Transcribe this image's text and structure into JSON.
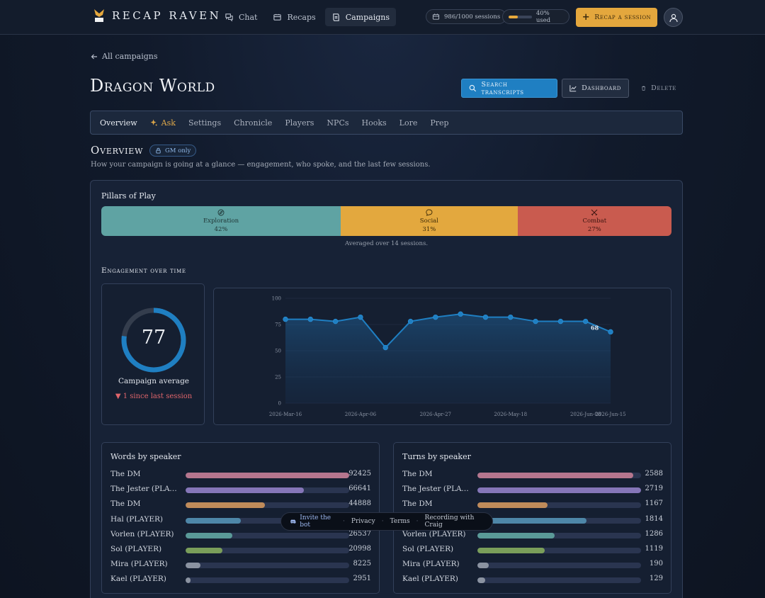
{
  "app": {
    "name": "RECAP RAVEN",
    "nav": [
      {
        "label": "Chat",
        "icon": "chat-icon"
      },
      {
        "label": "Recaps",
        "icon": "recaps-icon"
      },
      {
        "label": "Campaigns",
        "icon": "campaigns-icon",
        "active": true
      }
    ],
    "sessions_chip": "986/1000 sessions",
    "usage_chip": "40% used",
    "usage_fraction": 0.4,
    "recap_button": "Recap a session"
  },
  "header": {
    "back_link": "All campaigns",
    "title": "Dragon World",
    "search_button": "Search transcripts",
    "dashboard_button": "Dashboard",
    "delete_button": "Delete"
  },
  "tabs": [
    "Overview",
    "Ask",
    "Settings",
    "Chronicle",
    "Players",
    "NPCs",
    "Hooks",
    "Lore",
    "Prep"
  ],
  "overview": {
    "title": "Overview",
    "badge": "GM only",
    "subtitle": "How your campaign is going at a glance — engagement, who spoke, and the last few sessions."
  },
  "pillars": {
    "title": "Pillars of Play",
    "items": [
      {
        "name": "Exploration",
        "percent": "42%",
        "value": 42,
        "color": "#5fa3a3",
        "icon": "compass-icon"
      },
      {
        "name": "Social",
        "percent": "31%",
        "value": 31,
        "color": "#e3a83e",
        "icon": "speech-bubble-icon"
      },
      {
        "name": "Combat",
        "percent": "27%",
        "value": 27,
        "color": "#c95b4f",
        "icon": "crossed-swords-icon"
      }
    ],
    "note": "Averaged over 14 sessions."
  },
  "engagement": {
    "title": "Engagement over time",
    "score": "77",
    "score_value": 77,
    "label": "Campaign average",
    "delta": "▼ 1 since last session"
  },
  "chart_data": {
    "type": "line",
    "x_tick_labels": [
      "2026-Mar-16",
      "2026-Apr-06",
      "2026-Apr-27",
      "2026-May-18",
      "2026-Jun-08",
      "2026-Jun-15"
    ],
    "y_ticks": [
      0,
      25,
      50,
      75,
      100
    ],
    "ylim": [
      0,
      100
    ],
    "values": [
      80,
      80,
      78,
      82,
      53,
      78,
      82,
      85,
      82,
      82,
      78,
      78,
      78,
      68
    ],
    "annotation": "68",
    "grid": true,
    "color": "#1f7fc2"
  },
  "words_by_speaker": {
    "title": "Words by speaker",
    "max": 92425,
    "rows": [
      {
        "name": "The DM",
        "value": 92425,
        "color": "#b5768e"
      },
      {
        "name": "The Jester (PLAYER)",
        "value": 66641,
        "color": "#8576b8"
      },
      {
        "name": "The DM",
        "value": 44888,
        "color": "#c08b5a"
      },
      {
        "name": "Hal (PLAYER)",
        "value": 31204,
        "color": "#4e87a8"
      },
      {
        "name": "Vorlen (PLAYER)",
        "value": 26537,
        "color": "#5a9a98"
      },
      {
        "name": "Sol (PLAYER)",
        "value": 20998,
        "color": "#7a9e5a"
      },
      {
        "name": "Mira (PLAYER)",
        "value": 8225,
        "color": "#8b93a1"
      },
      {
        "name": "Kael (PLAYER)",
        "value": 2951,
        "color": "#8b93a1"
      }
    ]
  },
  "turns_by_speaker": {
    "title": "Turns by speaker",
    "max": 2719,
    "rows": [
      {
        "name": "The DM",
        "value": 2588,
        "color": "#b5768e"
      },
      {
        "name": "The Jester (PLAYER)",
        "value": 2719,
        "color": "#8576b8"
      },
      {
        "name": "The DM",
        "value": 1167,
        "color": "#c08b5a"
      },
      {
        "name": "Hal (PLAYER)",
        "value": 1814,
        "color": "#4e87a8"
      },
      {
        "name": "Vorlen (PLAYER)",
        "value": 1286,
        "color": "#5a9a98"
      },
      {
        "name": "Sol (PLAYER)",
        "value": 1119,
        "color": "#7a9e5a"
      },
      {
        "name": "Mira (PLAYER)",
        "value": 190,
        "color": "#8b93a1"
      },
      {
        "name": "Kael (PLAYER)",
        "value": 129,
        "color": "#8b93a1"
      }
    ]
  },
  "footer": {
    "invite": "Invite the bot",
    "privacy": "Privacy",
    "terms": "Terms",
    "craig": "Recording with Craig"
  }
}
